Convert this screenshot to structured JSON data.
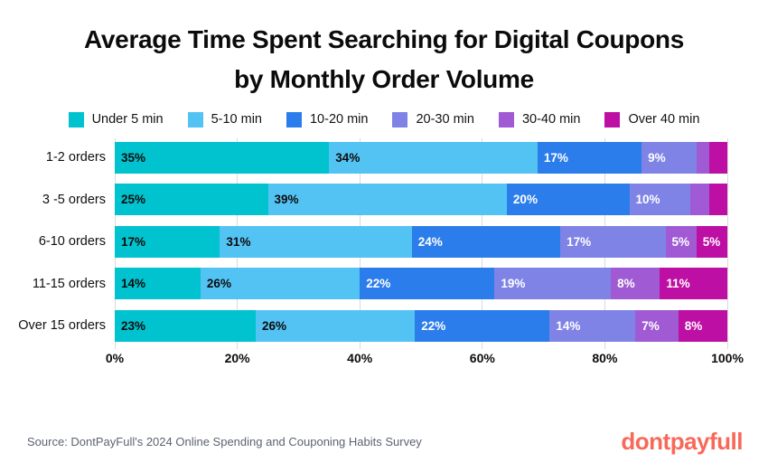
{
  "title": {
    "line1": "Average Time Spent Searching for Digital Coupons",
    "line2": "by Monthly Order Volume"
  },
  "chart_data": {
    "type": "bar",
    "variant": "horizontal-stacked-percent",
    "categories": [
      "1-2 orders",
      "3 -5 orders",
      "6-10 orders",
      "11-15 orders",
      "Over 15 orders"
    ],
    "series": [
      {
        "name": "Under 5 min",
        "color": "#00C3CF",
        "label_color": "#0c0c0c",
        "values": [
          35,
          25,
          17,
          14,
          23
        ]
      },
      {
        "name": "5-10 min",
        "color": "#53C3F4",
        "label_color": "#0c0c0c",
        "values": [
          34,
          39,
          31,
          26,
          26
        ]
      },
      {
        "name": "10-20 min",
        "color": "#2B7DEB",
        "label_color": "#ffffff",
        "values": [
          17,
          20,
          24,
          22,
          22
        ]
      },
      {
        "name": "20-30 min",
        "color": "#7F83E6",
        "label_color": "#ffffff",
        "values": [
          9,
          10,
          17,
          19,
          14
        ]
      },
      {
        "name": "30-40 min",
        "color": "#A05AD3",
        "label_color": "#ffffff",
        "values": [
          2,
          3,
          5,
          8,
          7
        ]
      },
      {
        "name": "Over 40 min",
        "color": "#BD0FA3",
        "label_color": "#ffffff",
        "values": [
          3,
          3,
          5,
          11,
          8
        ]
      }
    ],
    "data_label_format": "{value}%",
    "data_label_min_value_to_show": 5,
    "x_axis": {
      "min": 0,
      "max": 100,
      "ticks": [
        "0%",
        "20%",
        "40%",
        "60%",
        "80%",
        "100%"
      ]
    },
    "grid": "vertical",
    "grid_color": "#d9d9d9",
    "legend_position": "top"
  },
  "footer": {
    "source": "Source: DontPayFull's 2024 Online Spending and Couponing Habits Survey",
    "brand": "dontpayfull"
  },
  "colors": {
    "background": "#ffffff",
    "title_text": "#0b0b0b",
    "axis_text": "#0d0d0d",
    "source_text": "#5c6370",
    "brand": "#f8695a"
  }
}
